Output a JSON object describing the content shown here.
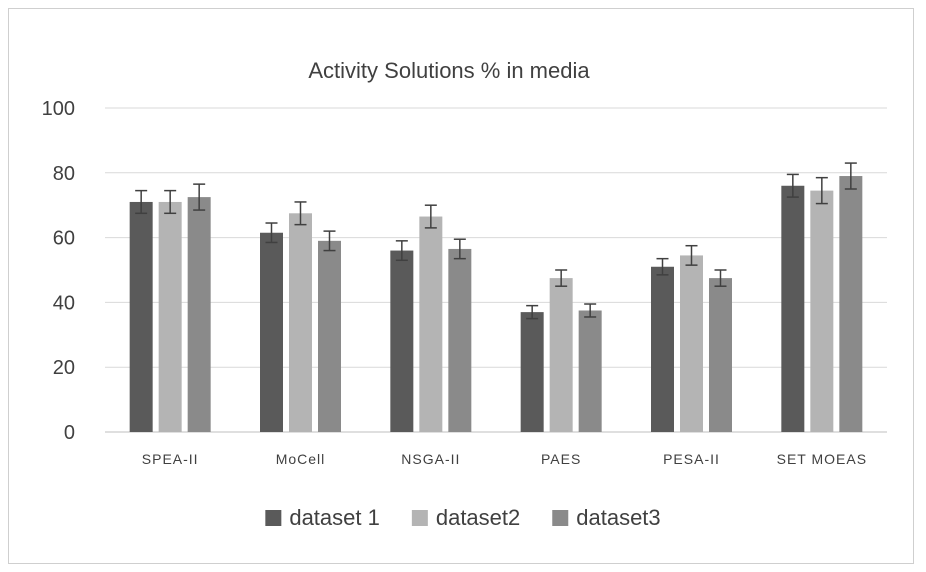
{
  "chart_data": {
    "type": "bar",
    "title": "Activity Solutions % in media",
    "xlabel": "",
    "ylabel": "",
    "ylim": [
      0,
      100
    ],
    "yticks": [
      0,
      20,
      40,
      60,
      80,
      100
    ],
    "grid": true,
    "legend_position": "bottom",
    "categories": [
      "SPEA-II",
      "MoCell",
      "NSGA-II",
      "PAES",
      "PESA-II",
      "SET MOEAS"
    ],
    "series": [
      {
        "name": "dataset 1",
        "color": "#5a5a5a",
        "values": [
          71,
          61.5,
          56,
          37,
          51,
          76
        ],
        "error": [
          3.5,
          3,
          3,
          2,
          2.5,
          3.5
        ]
      },
      {
        "name": "dataset2",
        "color": "#b4b4b4",
        "values": [
          71,
          67.5,
          66.5,
          47.5,
          54.5,
          74.5
        ],
        "error": [
          3.5,
          3.5,
          3.5,
          2.5,
          3,
          4
        ]
      },
      {
        "name": "dataset3",
        "color": "#8a8a8a",
        "values": [
          72.5,
          59,
          56.5,
          37.5,
          47.5,
          79
        ],
        "error": [
          4,
          3,
          3,
          2,
          2.5,
          4
        ]
      }
    ]
  }
}
